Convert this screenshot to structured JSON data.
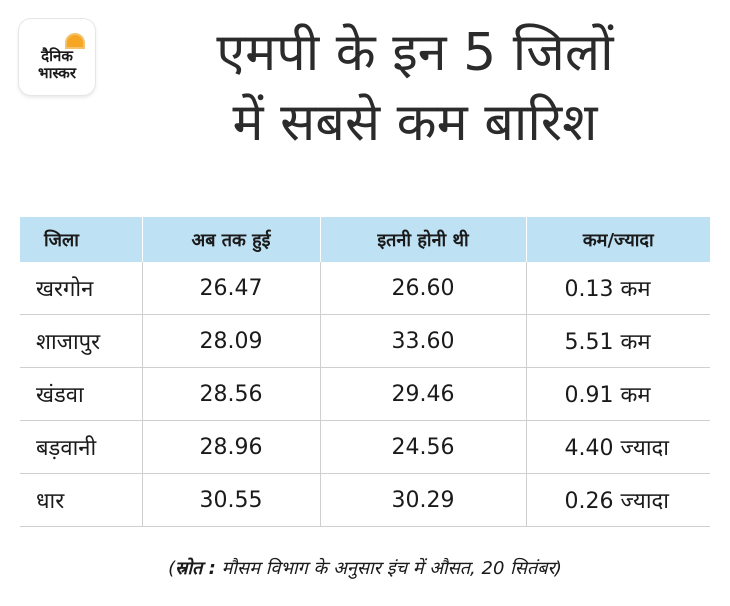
{
  "logo": {
    "line1": "दैनिक",
    "line2": "भास्कर"
  },
  "title": {
    "line1": "एमपी के इन 5 जिलों",
    "line2": "में सबसे कम बारिश"
  },
  "table": {
    "headers": [
      "जिला",
      "अब तक हुई",
      "इतनी होनी थी",
      "कम/ज्यादा"
    ],
    "rows": [
      [
        "खरगोन",
        "26.47",
        "26.60",
        "0.13 कम"
      ],
      [
        "शाजापुर",
        "28.09",
        "33.60",
        "5.51 कम"
      ],
      [
        "खंडवा",
        "28.56",
        "29.46",
        "0.91 कम"
      ],
      [
        "बड़वानी",
        "28.96",
        "24.56",
        "4.40 ज्यादा"
      ],
      [
        "धार",
        "30.55",
        "30.29",
        "0.26 ज्यादा"
      ]
    ]
  },
  "source": {
    "prefix": "(",
    "label": "स्रोत :",
    "text": " मौसम विभाग के अनुसार इंच में औसत, 20 सितंबर)"
  }
}
